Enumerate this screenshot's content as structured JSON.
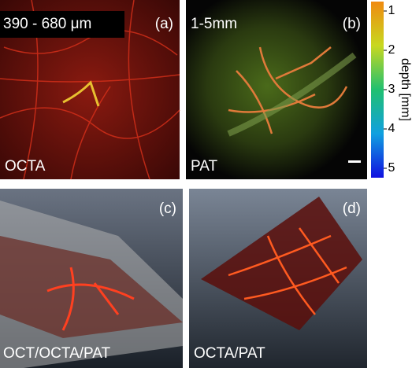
{
  "panels": [
    {
      "label": "(a)",
      "title": "390 - 680 μm",
      "caption": "OCTA"
    },
    {
      "label": "(b)",
      "title": "1-5mm",
      "caption": "PAT"
    },
    {
      "label": "(c)",
      "caption": "OCT/OCTA/PAT"
    },
    {
      "label": "(d)",
      "caption": "OCTA/PAT"
    }
  ],
  "colorbar": {
    "label": "depth [mm]",
    "ticks": [
      1,
      2,
      3,
      4,
      5
    ]
  }
}
